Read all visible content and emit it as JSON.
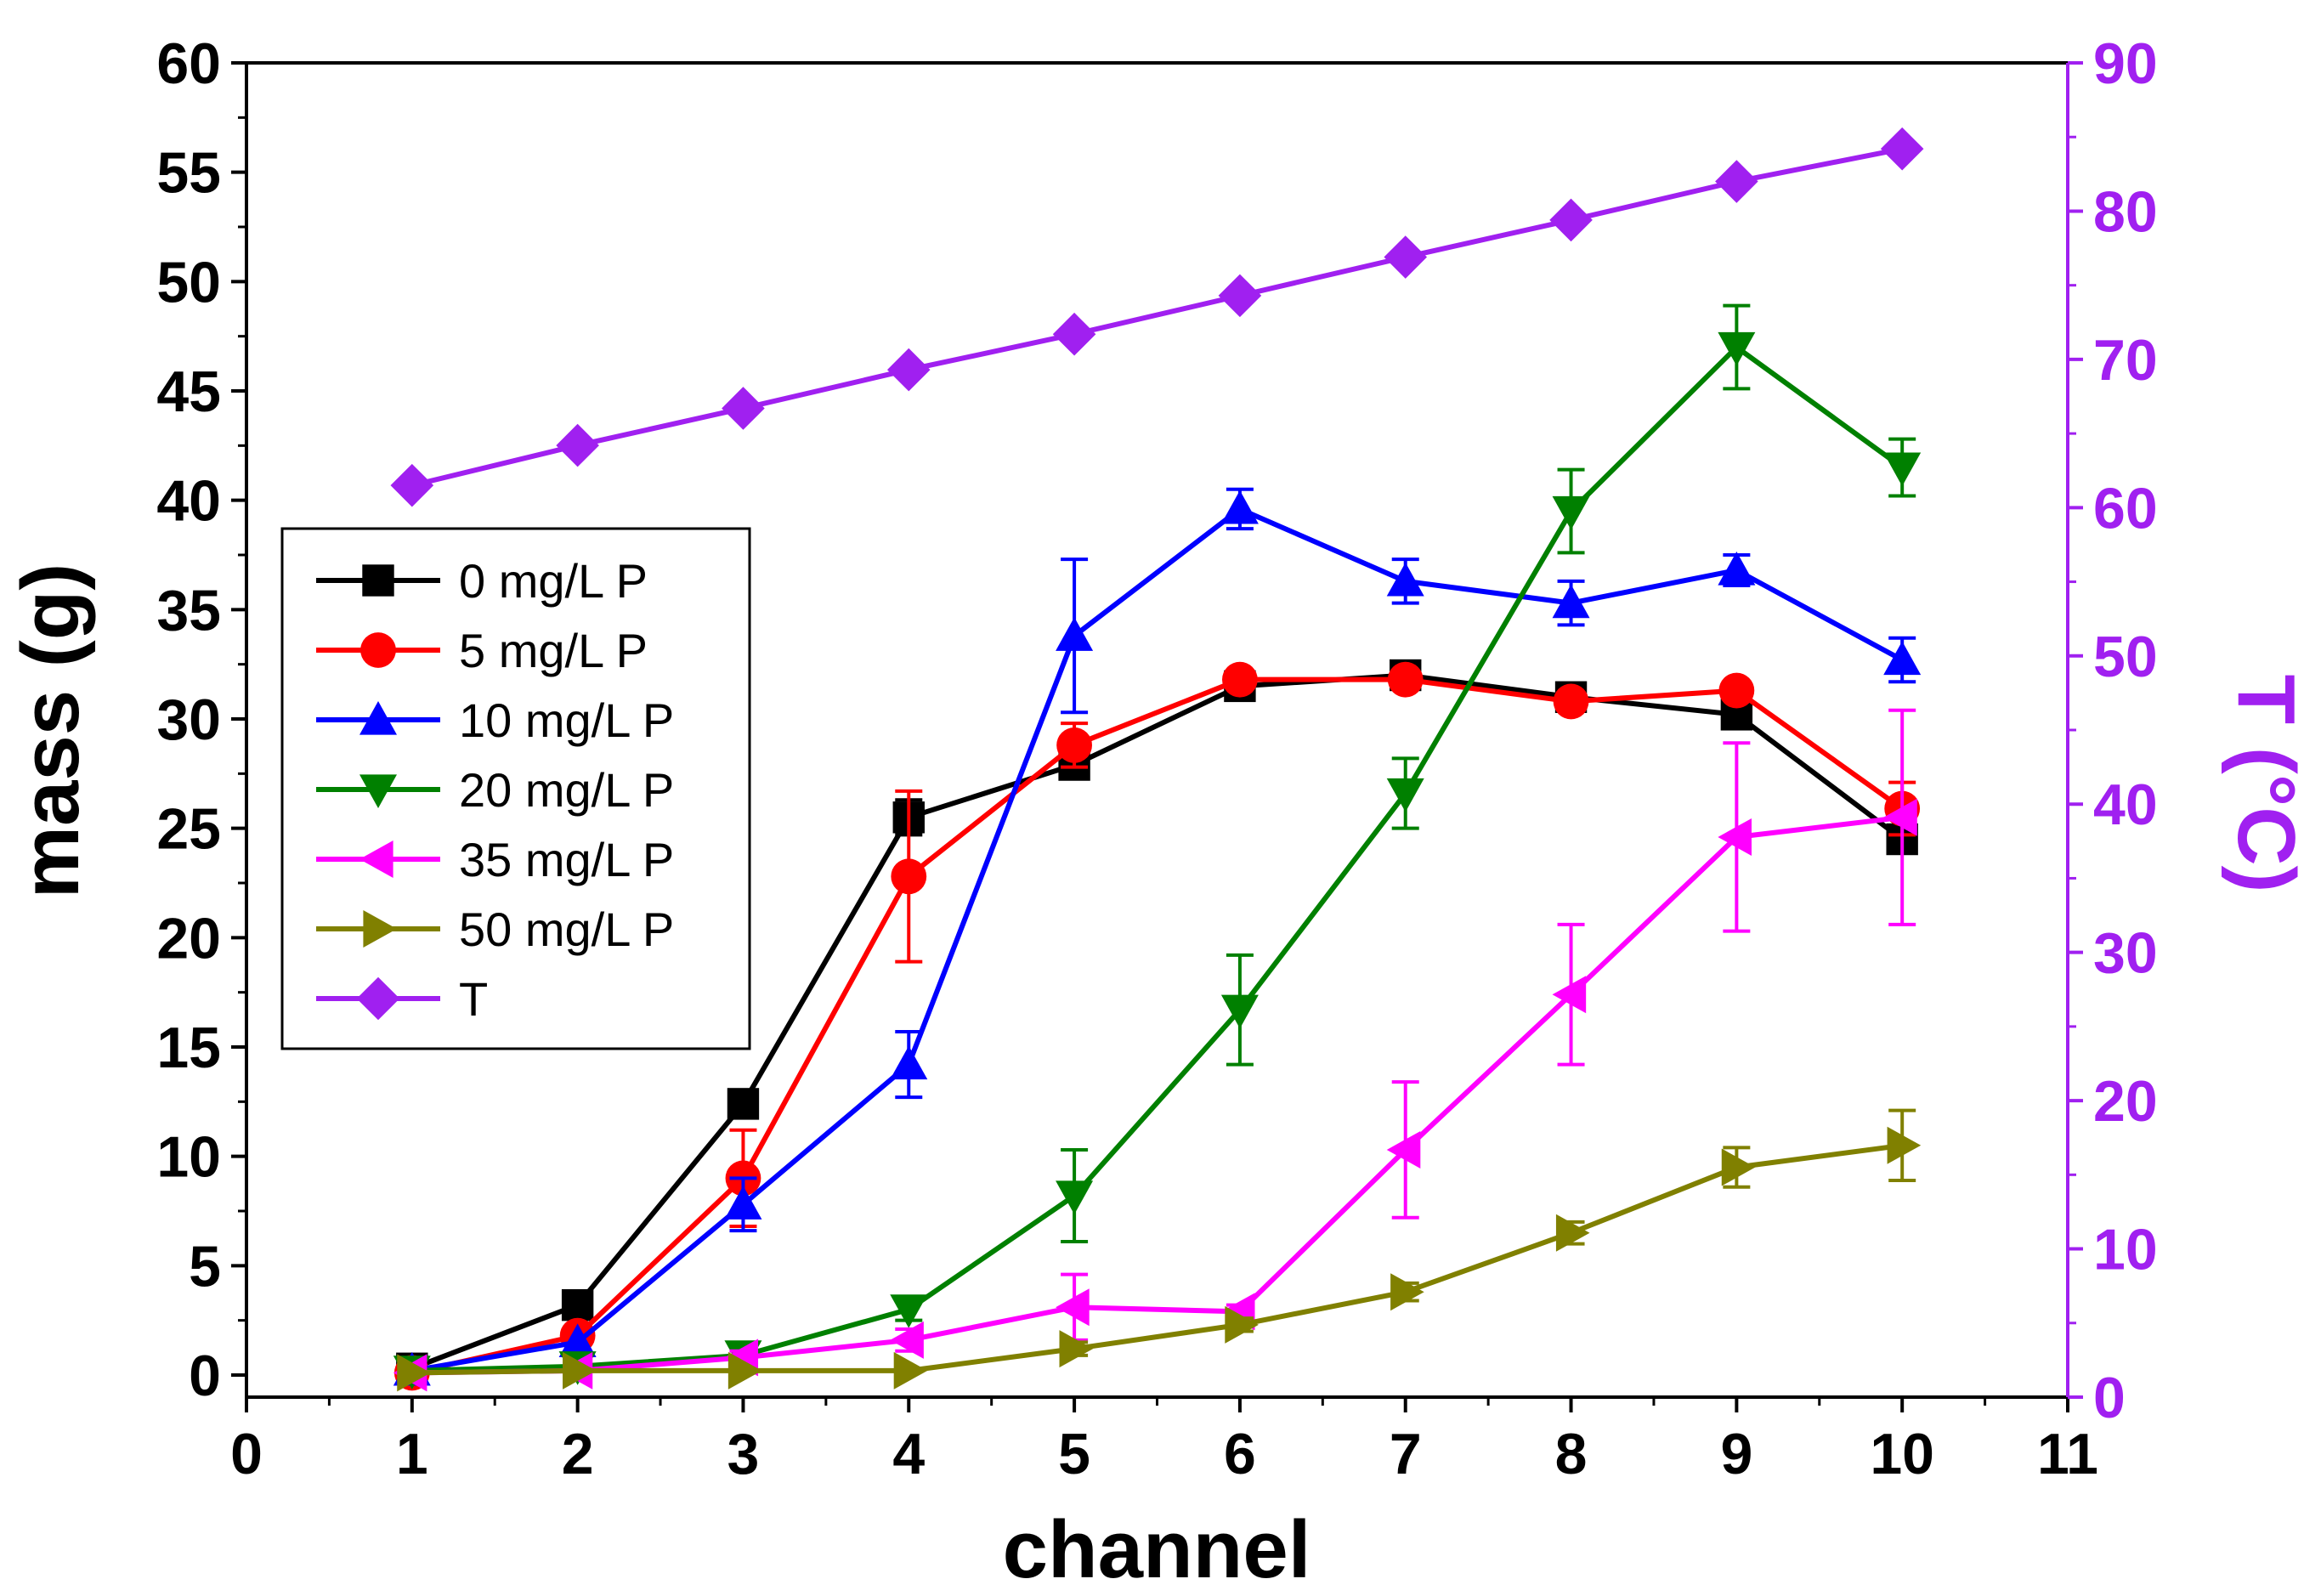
{
  "chart_data": {
    "type": "line",
    "x_axis": {
      "label": "channel",
      "range": [
        0,
        11
      ],
      "ticks": [
        0,
        1,
        2,
        3,
        4,
        5,
        6,
        7,
        8,
        9,
        10,
        11
      ]
    },
    "y_axis_left": {
      "label": "mass (g)",
      "range": [
        0,
        60
      ],
      "ticks": [
        0,
        5,
        10,
        15,
        20,
        25,
        30,
        35,
        40,
        45,
        50,
        55,
        60
      ]
    },
    "y_axis_right": {
      "label": "T (°C)",
      "range": [
        0,
        90
      ],
      "ticks": [
        0,
        10,
        20,
        30,
        40,
        50,
        60,
        70,
        80,
        90
      ],
      "color": "#a020f0"
    },
    "legend_position": "middle-left",
    "grid": false,
    "x": [
      1,
      2,
      3,
      4,
      5,
      6,
      7,
      8,
      9,
      10
    ],
    "series": [
      {
        "name": "0 mg/L P",
        "color": "#000000",
        "marker": "square",
        "axis": "left",
        "values": [
          0.3,
          3.2,
          12.4,
          25.5,
          27.9,
          31.5,
          32.0,
          31.0,
          30.2,
          24.5
        ],
        "errors": [
          0,
          0,
          0,
          0.8,
          0.6,
          0,
          0,
          0,
          0,
          0
        ]
      },
      {
        "name": "5 mg/L P",
        "color": "#ff0000",
        "marker": "circle",
        "axis": "left",
        "values": [
          0.1,
          1.8,
          9.0,
          22.8,
          28.8,
          31.8,
          31.8,
          30.8,
          31.3,
          25.9
        ],
        "errors": [
          0,
          0,
          2.2,
          3.9,
          1.0,
          0.3,
          0.4,
          0.3,
          0.3,
          1.2
        ]
      },
      {
        "name": "10 mg/L P",
        "color": "#0000ff",
        "marker": "triangle-up",
        "axis": "left",
        "values": [
          0.2,
          1.5,
          7.8,
          14.2,
          33.8,
          39.6,
          36.3,
          35.3,
          36.8,
          32.7
        ],
        "errors": [
          0,
          0,
          1.2,
          1.5,
          3.5,
          0.9,
          1.0,
          1.0,
          0.7,
          1.0
        ]
      },
      {
        "name": "20 mg/L P",
        "color": "#008000",
        "marker": "triangle-down",
        "axis": "left",
        "values": [
          0.2,
          0.4,
          0.9,
          3.0,
          8.2,
          16.7,
          26.6,
          39.5,
          47.0,
          41.5
        ],
        "errors": [
          0,
          0,
          0.5,
          0.5,
          2.1,
          2.5,
          1.6,
          1.9,
          1.9,
          1.3
        ]
      },
      {
        "name": "35 mg/L P",
        "color": "#ff00ff",
        "marker": "triangle-left",
        "axis": "left",
        "values": [
          0.1,
          0.2,
          0.8,
          1.6,
          3.1,
          2.9,
          10.3,
          17.4,
          24.6,
          25.5
        ],
        "errors": [
          0,
          0,
          0.3,
          0.5,
          1.5,
          0.3,
          3.1,
          3.2,
          4.3,
          4.9
        ]
      },
      {
        "name": "50 mg/L P",
        "color": "#808000",
        "marker": "triangle-right",
        "axis": "left",
        "values": [
          0.1,
          0.2,
          0.2,
          0.2,
          1.2,
          2.3,
          3.8,
          6.5,
          9.5,
          10.5
        ],
        "errors": [
          0,
          0,
          0,
          0,
          0.3,
          0.3,
          0.4,
          0.5,
          0.9,
          1.6
        ]
      },
      {
        "name": "T",
        "color": "#a020f0",
        "marker": "diamond",
        "axis": "right",
        "values": [
          61.5,
          64.2,
          66.7,
          69.3,
          71.7,
          74.3,
          76.9,
          79.4,
          82.0,
          84.2
        ],
        "errors": [
          0,
          0,
          0,
          0,
          0,
          0,
          0,
          0,
          0,
          0
        ]
      }
    ]
  }
}
